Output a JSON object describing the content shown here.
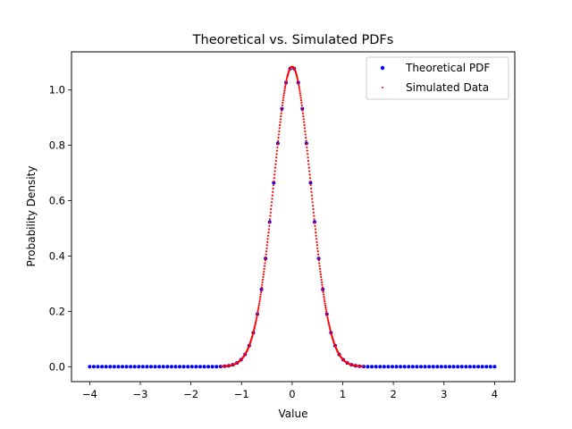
{
  "chart_data": {
    "type": "scatter",
    "title": "Theoretical vs. Simulated PDFs",
    "xlabel": "Value",
    "ylabel": "Probability Density",
    "xlim": [
      -4.36,
      4.4
    ],
    "ylim": [
      -0.054,
      1.138
    ],
    "xticks": [
      -4,
      -3,
      -2,
      -1,
      0,
      1,
      2,
      3,
      4
    ],
    "xtick_labels": [
      "−4",
      "−3",
      "−2",
      "−1",
      "0",
      "1",
      "2",
      "3",
      "4"
    ],
    "yticks": [
      0.0,
      0.2,
      0.4,
      0.6,
      0.8,
      1.0
    ],
    "ytick_labels": [
      "0.0",
      "0.2",
      "0.4",
      "0.6",
      "0.8",
      "1.0"
    ],
    "grid": false,
    "legend_position": "upper right",
    "series": [
      {
        "name": "Theoretical PDF",
        "color": "#0000ff",
        "marker": "circle",
        "distribution": "normal",
        "mean": 0,
        "sd": 0.368,
        "peak_density": 1.084,
        "x_start": -4,
        "x_end": 4,
        "point_count": 100
      },
      {
        "name": "Simulated Data",
        "color": "#ff0000",
        "marker": "small circle",
        "distribution": "normal",
        "mean": 0,
        "sd": 0.368,
        "peak_density": 1.084,
        "x_start": -1.4,
        "x_end": 1.4
      }
    ]
  }
}
